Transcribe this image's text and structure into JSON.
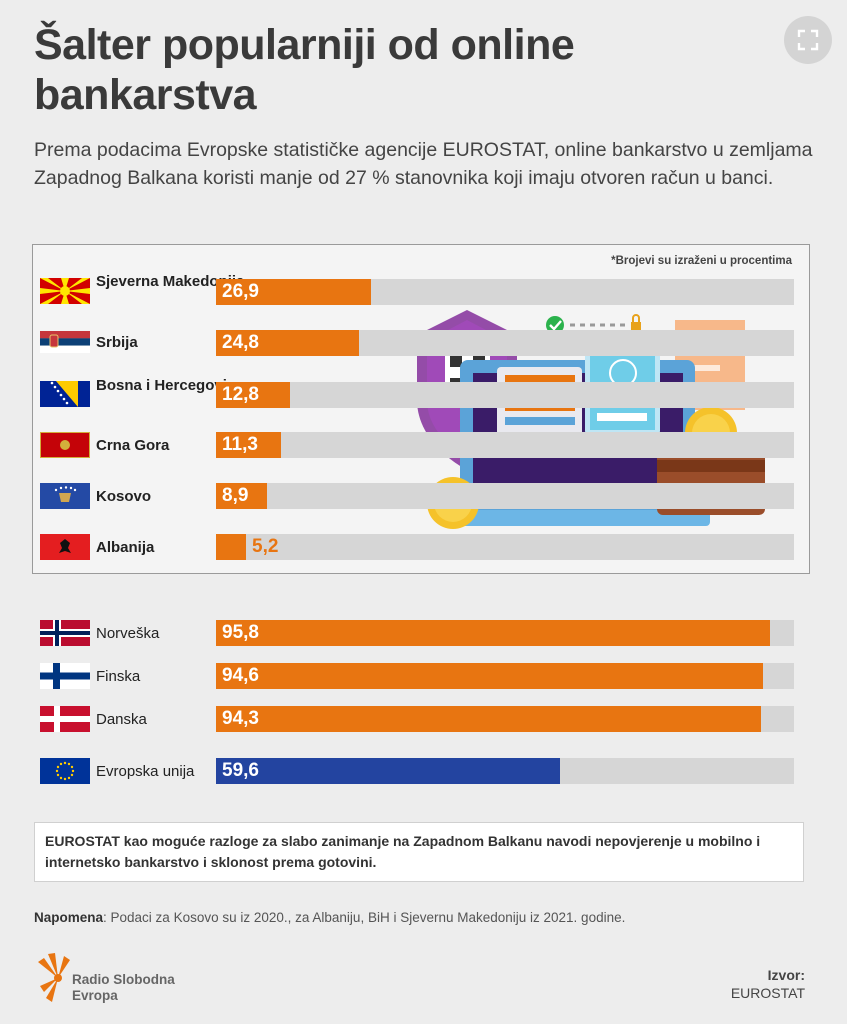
{
  "header": {
    "title": "Šalter popularniji od online bankarstva",
    "subtitle": "Prema podacima Evropske statističke agencije EUROSTAT, online bankarstvo u zemljama Zapadnog Balkana koristi manje od 27 % stanovnika koji imaju otvoren račun u banci.",
    "expand_icon": "expand-icon"
  },
  "units_note": "*Brojevi su izraženi u procentima",
  "colors": {
    "orange": "#e87511",
    "blue": "#2344a0",
    "track": "#d6d6d6"
  },
  "chart_data": [
    {
      "type": "bar",
      "orientation": "horizontal",
      "categories": [
        "Sjeverna Makedonija",
        "Srbija",
        "Bosna i Hercegovina",
        "Crna Gora",
        "Kosovo",
        "Albanija"
      ],
      "values": [
        26.9,
        24.8,
        12.8,
        11.3,
        8.9,
        5.2
      ],
      "labels": [
        "26,9",
        "24,8",
        "12,8",
        "11,3",
        "8,9",
        "5,2"
      ],
      "xlim": [
        0,
        100
      ]
    },
    {
      "type": "bar",
      "orientation": "horizontal",
      "categories": [
        "Norveška",
        "Finska",
        "Danska",
        "Evropska unija"
      ],
      "values": [
        95.8,
        94.6,
        94.3,
        59.6
      ],
      "labels": [
        "95,8",
        "94,6",
        "94,3",
        "59,6"
      ],
      "xlim": [
        0,
        100
      ]
    }
  ],
  "reasons": "EUROSTAT kao moguće razloge za slabo zanimanje na Zapadnom Balkanu navodi nepovjerenje u mobilno i internetsko bankarstvo i sklonost prema gotovini.",
  "footnote": {
    "key": "Napomena",
    "text": ": Podaci za Kosovo su iz 2020., za Albaniju, BiH i Sjevernu Makedoniju iz 2021. godine."
  },
  "logo": {
    "line1": "Radio Slobodna",
    "line2": "Evropa"
  },
  "source": {
    "key": "Izvor:",
    "value": "EUROSTAT"
  }
}
